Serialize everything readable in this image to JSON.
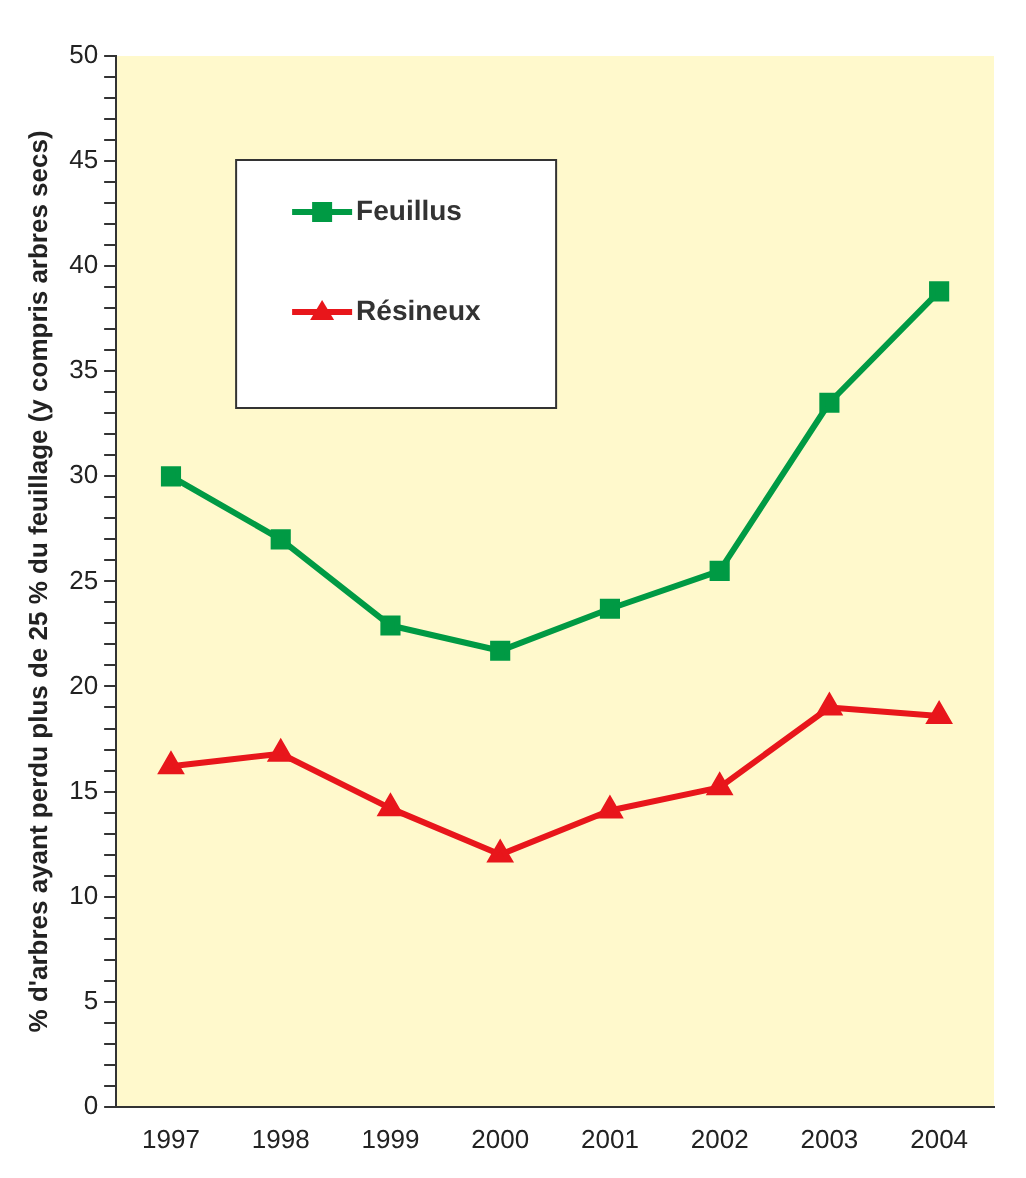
{
  "chart_data": {
    "type": "line",
    "ylabel": "% d'arbres ayant perdu plus de 25 % du feuillage (y compris arbres secs)",
    "categories": [
      "1997",
      "1998",
      "1999",
      "2000",
      "2001",
      "2002",
      "2003",
      "2004"
    ],
    "series": [
      {
        "name": "Feuillus",
        "color": "#009a44",
        "marker": "square",
        "values": [
          30,
          27,
          22.9,
          21.7,
          23.7,
          25.5,
          33.5,
          38.8
        ]
      },
      {
        "name": "Résineux",
        "color": "#e8161b",
        "marker": "triangle",
        "values": [
          16.2,
          16.8,
          14.2,
          12,
          14.1,
          15.2,
          19,
          18.6
        ]
      }
    ],
    "ylim": [
      0,
      50
    ],
    "yticks": [
      0,
      {
        "value": 1,
        "label": null
      },
      {
        "value": 2,
        "label": null
      },
      {
        "value": 3,
        "label": null
      },
      {
        "value": 4,
        "label": null
      },
      5,
      {
        "value": 6,
        "label": null
      },
      {
        "value": 7,
        "label": null
      },
      {
        "value": 8,
        "label": null
      },
      {
        "value": 9,
        "label": null
      },
      10,
      {
        "value": 11,
        "label": null
      },
      {
        "value": 12,
        "label": null
      },
      {
        "value": 13,
        "label": null
      },
      {
        "value": 14,
        "label": null
      },
      15,
      {
        "value": 16,
        "label": null
      },
      {
        "value": 17,
        "label": null
      },
      {
        "value": 18,
        "label": null
      },
      {
        "value": 19,
        "label": null
      },
      20,
      {
        "value": 21,
        "label": null
      },
      {
        "value": 22,
        "label": null
      },
      {
        "value": 23,
        "label": null
      },
      {
        "value": 24,
        "label": null
      },
      25,
      {
        "value": 26,
        "label": null
      },
      {
        "value": 27,
        "label": null
      },
      {
        "value": 28,
        "label": null
      },
      {
        "value": 29,
        "label": null
      },
      30,
      {
        "value": 31,
        "label": null
      },
      {
        "value": 32,
        "label": null
      },
      {
        "value": 33,
        "label": null
      },
      {
        "value": 34,
        "label": null
      },
      35,
      {
        "value": 36,
        "label": null
      },
      {
        "value": 37,
        "label": null
      },
      {
        "value": 38,
        "label": null
      },
      {
        "value": 39,
        "label": null
      },
      40,
      {
        "value": 41,
        "label": null
      },
      {
        "value": 42,
        "label": null
      },
      {
        "value": 43,
        "label": null
      },
      {
        "value": 44,
        "label": null
      },
      45,
      {
        "value": 46,
        "label": null
      },
      {
        "value": 47,
        "label": null
      },
      {
        "value": 48,
        "label": null
      },
      {
        "value": 49,
        "label": null
      },
      50
    ],
    "grid": false,
    "legend": "top left",
    "line_style": "solid"
  }
}
